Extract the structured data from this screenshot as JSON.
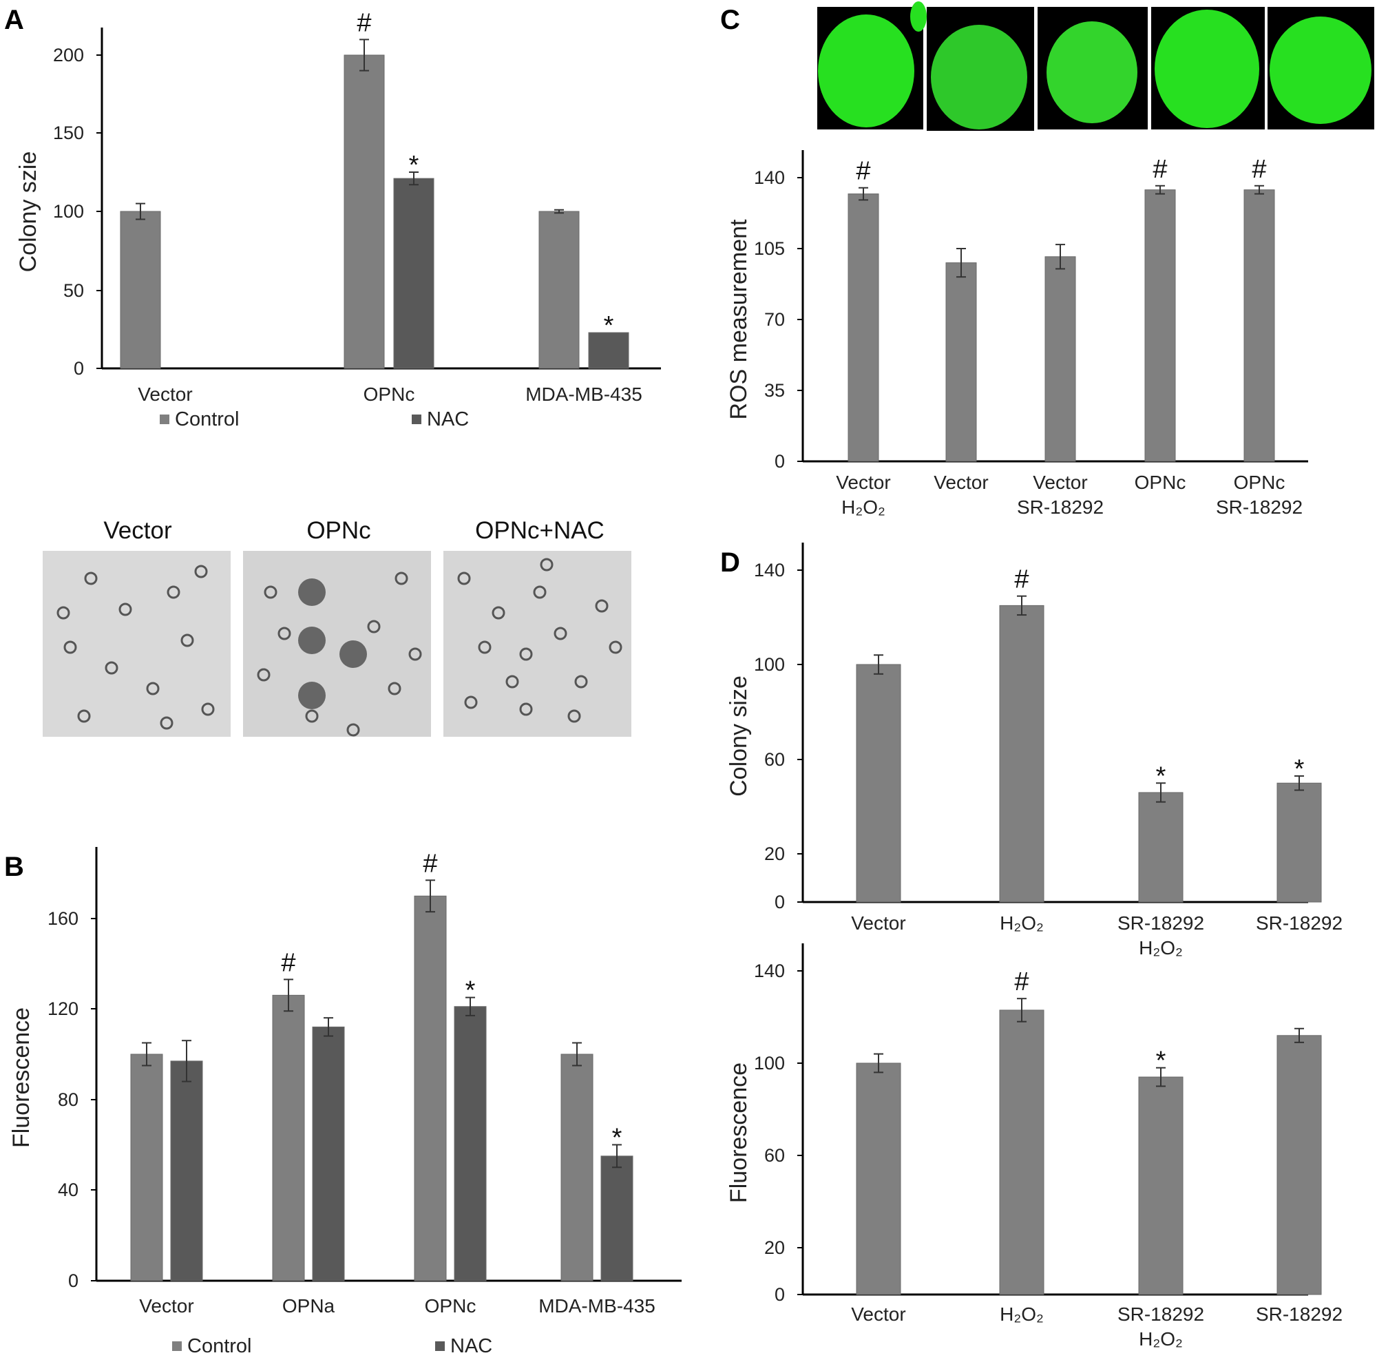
{
  "chart_data": [
    {
      "panel": "A",
      "type": "bar",
      "ylabel": "Colony szie",
      "ylim": [
        0,
        200
      ],
      "yticks": [
        "0",
        "50",
        "100",
        "150",
        "200"
      ],
      "categories": [
        "Vector",
        "OPNc",
        "MDA-MB-435"
      ],
      "series": [
        {
          "name": "Control",
          "color": "#7f7f7f",
          "values": [
            100,
            200,
            100
          ],
          "errors": [
            5,
            10,
            1
          ],
          "marks": [
            "",
            "#",
            ""
          ]
        },
        {
          "name": "NAC",
          "color": "#595959",
          "values": [
            0,
            121,
            23
          ],
          "errors": [
            0,
            4,
            0
          ],
          "marks": [
            "",
            "*",
            "*"
          ]
        }
      ],
      "legend": "bottom"
    },
    {
      "panel": "B",
      "type": "bar",
      "ylabel": "Fluorescence",
      "ylim": [
        0,
        180
      ],
      "yticks": [
        "0",
        "40",
        "80",
        "120",
        "160"
      ],
      "categories": [
        "Vector",
        "OPNa",
        "OPNc",
        "MDA-MB-435"
      ],
      "series": [
        {
          "name": "Control",
          "color": "#7f7f7f",
          "values": [
            100,
            126,
            170,
            100
          ],
          "errors": [
            5,
            7,
            7,
            5
          ],
          "marks": [
            "",
            "#",
            "#",
            ""
          ]
        },
        {
          "name": "NAC",
          "color": "#595959",
          "values": [
            97,
            112,
            121,
            55
          ],
          "errors": [
            9,
            4,
            4,
            5
          ],
          "marks": [
            "",
            "",
            "*",
            "*"
          ]
        }
      ],
      "legend": "bottom"
    },
    {
      "panel": "C",
      "type": "bar",
      "ylabel": "ROS measurement",
      "ylim": [
        0,
        140
      ],
      "yticks": [
        "0",
        "35",
        "70",
        "105",
        "140"
      ],
      "categories": [
        [
          "Vector",
          "H₂O₂"
        ],
        [
          "Vector"
        ],
        [
          "Vector",
          "SR-18292"
        ],
        [
          "OPNc"
        ],
        [
          "OPNc",
          "SR-18292"
        ]
      ],
      "series": [
        {
          "name": "",
          "color": "#808080",
          "values": [
            132,
            98,
            101,
            134,
            134
          ],
          "errors": [
            3,
            7,
            6,
            2,
            2
          ],
          "marks": [
            "#",
            "",
            "",
            "#",
            "#"
          ]
        }
      ]
    },
    {
      "panel": "D",
      "type": "bar",
      "ylabel": "Colony size",
      "ylim": [
        0,
        140
      ],
      "yticks": [
        "0",
        "20",
        "60",
        "100",
        "140"
      ],
      "categories": [
        [
          "Vector"
        ],
        [
          "H₂O₂"
        ],
        [
          "SR-18292",
          "H₂O₂"
        ],
        [
          "SR-18292"
        ]
      ],
      "series": [
        {
          "name": "",
          "color": "#808080",
          "values": [
            100,
            125,
            46,
            50
          ],
          "errors": [
            4,
            4,
            4,
            3
          ],
          "marks": [
            "",
            "#",
            "*",
            "*"
          ]
        }
      ]
    },
    {
      "panel": "",
      "type": "bar",
      "ylabel": "Fluorescence",
      "ylim": [
        0,
        140
      ],
      "yticks": [
        "0",
        "20",
        "60",
        "100",
        "140"
      ],
      "categories": [
        [
          "Vector"
        ],
        [
          "H₂O₂"
        ],
        [
          "SR-18292",
          "H₂O₂"
        ],
        [
          "SR-18292"
        ]
      ],
      "series": [
        {
          "name": "",
          "color": "#808080",
          "values": [
            100,
            123,
            94,
            112
          ],
          "errors": [
            4,
            5,
            4,
            3
          ],
          "marks": [
            "",
            "#",
            "*",
            ""
          ]
        }
      ]
    }
  ],
  "micrographs": {
    "labels": [
      "Vector",
      "OPNc",
      "OPNc+NAC"
    ]
  },
  "fluorescence_images": {
    "count": 5,
    "color": "#27e020"
  }
}
